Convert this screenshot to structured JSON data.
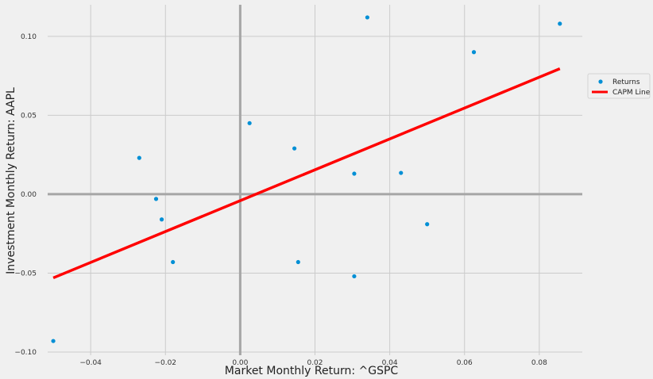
{
  "chart_data": {
    "type": "scatter",
    "xlabel": "Market Monthly Return: ^GSPC",
    "ylabel": "Investment Monthly Return: AAPL",
    "xlim": [
      -0.0515,
      0.0915
    ],
    "ylim": [
      -0.102,
      0.12
    ],
    "x_ticks": [
      -0.04,
      -0.02,
      0.0,
      0.02,
      0.04,
      0.06,
      0.08
    ],
    "x_tick_labels": [
      "−0.04",
      "−0.02",
      "0.00",
      "0.02",
      "0.04",
      "0.06",
      "0.08"
    ],
    "y_ticks": [
      -0.1,
      -0.05,
      0.0,
      0.05,
      0.1
    ],
    "y_tick_labels": [
      "−0.10",
      "−0.05",
      "0.00",
      "0.05",
      "0.10"
    ],
    "grid": true,
    "legend_position": "right",
    "series": [
      {
        "name": "Returns",
        "type": "scatter",
        "color": "#008fd5",
        "points": [
          {
            "x": -0.05,
            "y": -0.093
          },
          {
            "x": -0.027,
            "y": 0.023
          },
          {
            "x": -0.0225,
            "y": -0.003
          },
          {
            "x": -0.021,
            "y": -0.016
          },
          {
            "x": -0.018,
            "y": -0.043
          },
          {
            "x": 0.0025,
            "y": 0.045
          },
          {
            "x": 0.0145,
            "y": 0.029
          },
          {
            "x": 0.0155,
            "y": -0.043
          },
          {
            "x": 0.0305,
            "y": 0.013
          },
          {
            "x": 0.0305,
            "y": -0.052
          },
          {
            "x": 0.034,
            "y": 0.112
          },
          {
            "x": 0.043,
            "y": 0.0135
          },
          {
            "x": 0.05,
            "y": -0.019
          },
          {
            "x": 0.0625,
            "y": 0.09
          },
          {
            "x": 0.0855,
            "y": 0.108
          }
        ]
      },
      {
        "name": "CAPM Line",
        "type": "line",
        "color": "#ff0000",
        "points": [
          {
            "x": -0.05,
            "y": -0.053
          },
          {
            "x": 0.0855,
            "y": 0.0795
          }
        ]
      }
    ]
  },
  "colors": {
    "background": "#f0f0f0",
    "grid": "#cbcbcb",
    "zero_line": "#a6a6a6"
  }
}
